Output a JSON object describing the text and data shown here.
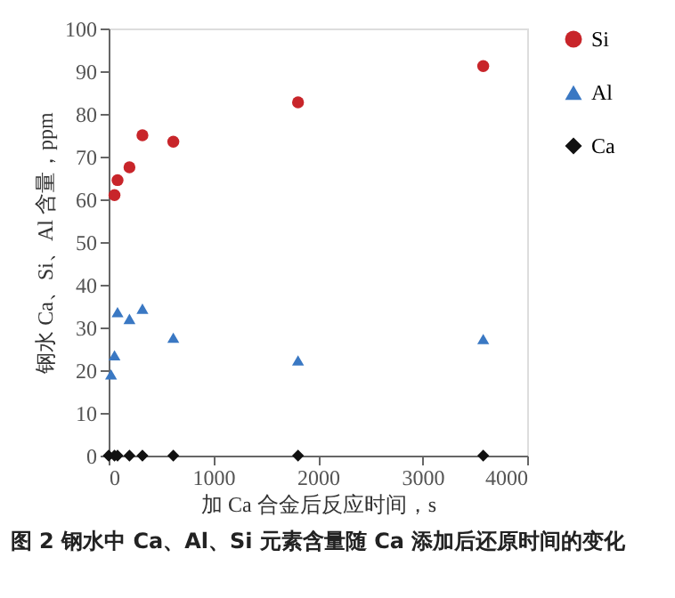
{
  "chart_data": {
    "type": "scatter",
    "xlabel": "加 Ca 合金后反应时间，s",
    "ylabel": "钢水 Ca、Si、Al 含量，ppm",
    "annotations": [
      "图 2 钢水中 Ca、Al、Si 元素含量随 Ca 添加后还原时间的变化"
    ],
    "xlim": [
      0,
      4000
    ],
    "xticks": [
      0,
      1000,
      2000,
      3000,
      4000
    ],
    "ylim": [
      0,
      100
    ],
    "yticks": [
      0,
      10,
      20,
      30,
      40,
      50,
      60,
      70,
      80,
      90,
      100
    ],
    "grid": false,
    "legend": "right",
    "series": [
      {
        "name": "Si",
        "color": "#c8252a",
        "marker": "circle",
        "x": [
          56,
          85,
          199,
          323,
          618,
          1810,
          3580
        ],
        "values": [
          61,
          64.5,
          67.5,
          75,
          73.5,
          82.7,
          91.2
        ]
      },
      {
        "name": "Al",
        "color": "#3a78c3",
        "marker": "triangle",
        "x": [
          23,
          56,
          85,
          199,
          323,
          618,
          1810,
          3580
        ],
        "values": [
          19,
          23.5,
          33.6,
          32,
          34.4,
          27.6,
          22.3,
          27.3
        ]
      },
      {
        "name": "Ca",
        "color": "#111111",
        "marker": "diamond",
        "x": [
          0,
          56,
          85,
          199,
          323,
          618,
          1810,
          3580
        ],
        "values": [
          0,
          0,
          0,
          0,
          0,
          0,
          0,
          0
        ]
      }
    ]
  }
}
